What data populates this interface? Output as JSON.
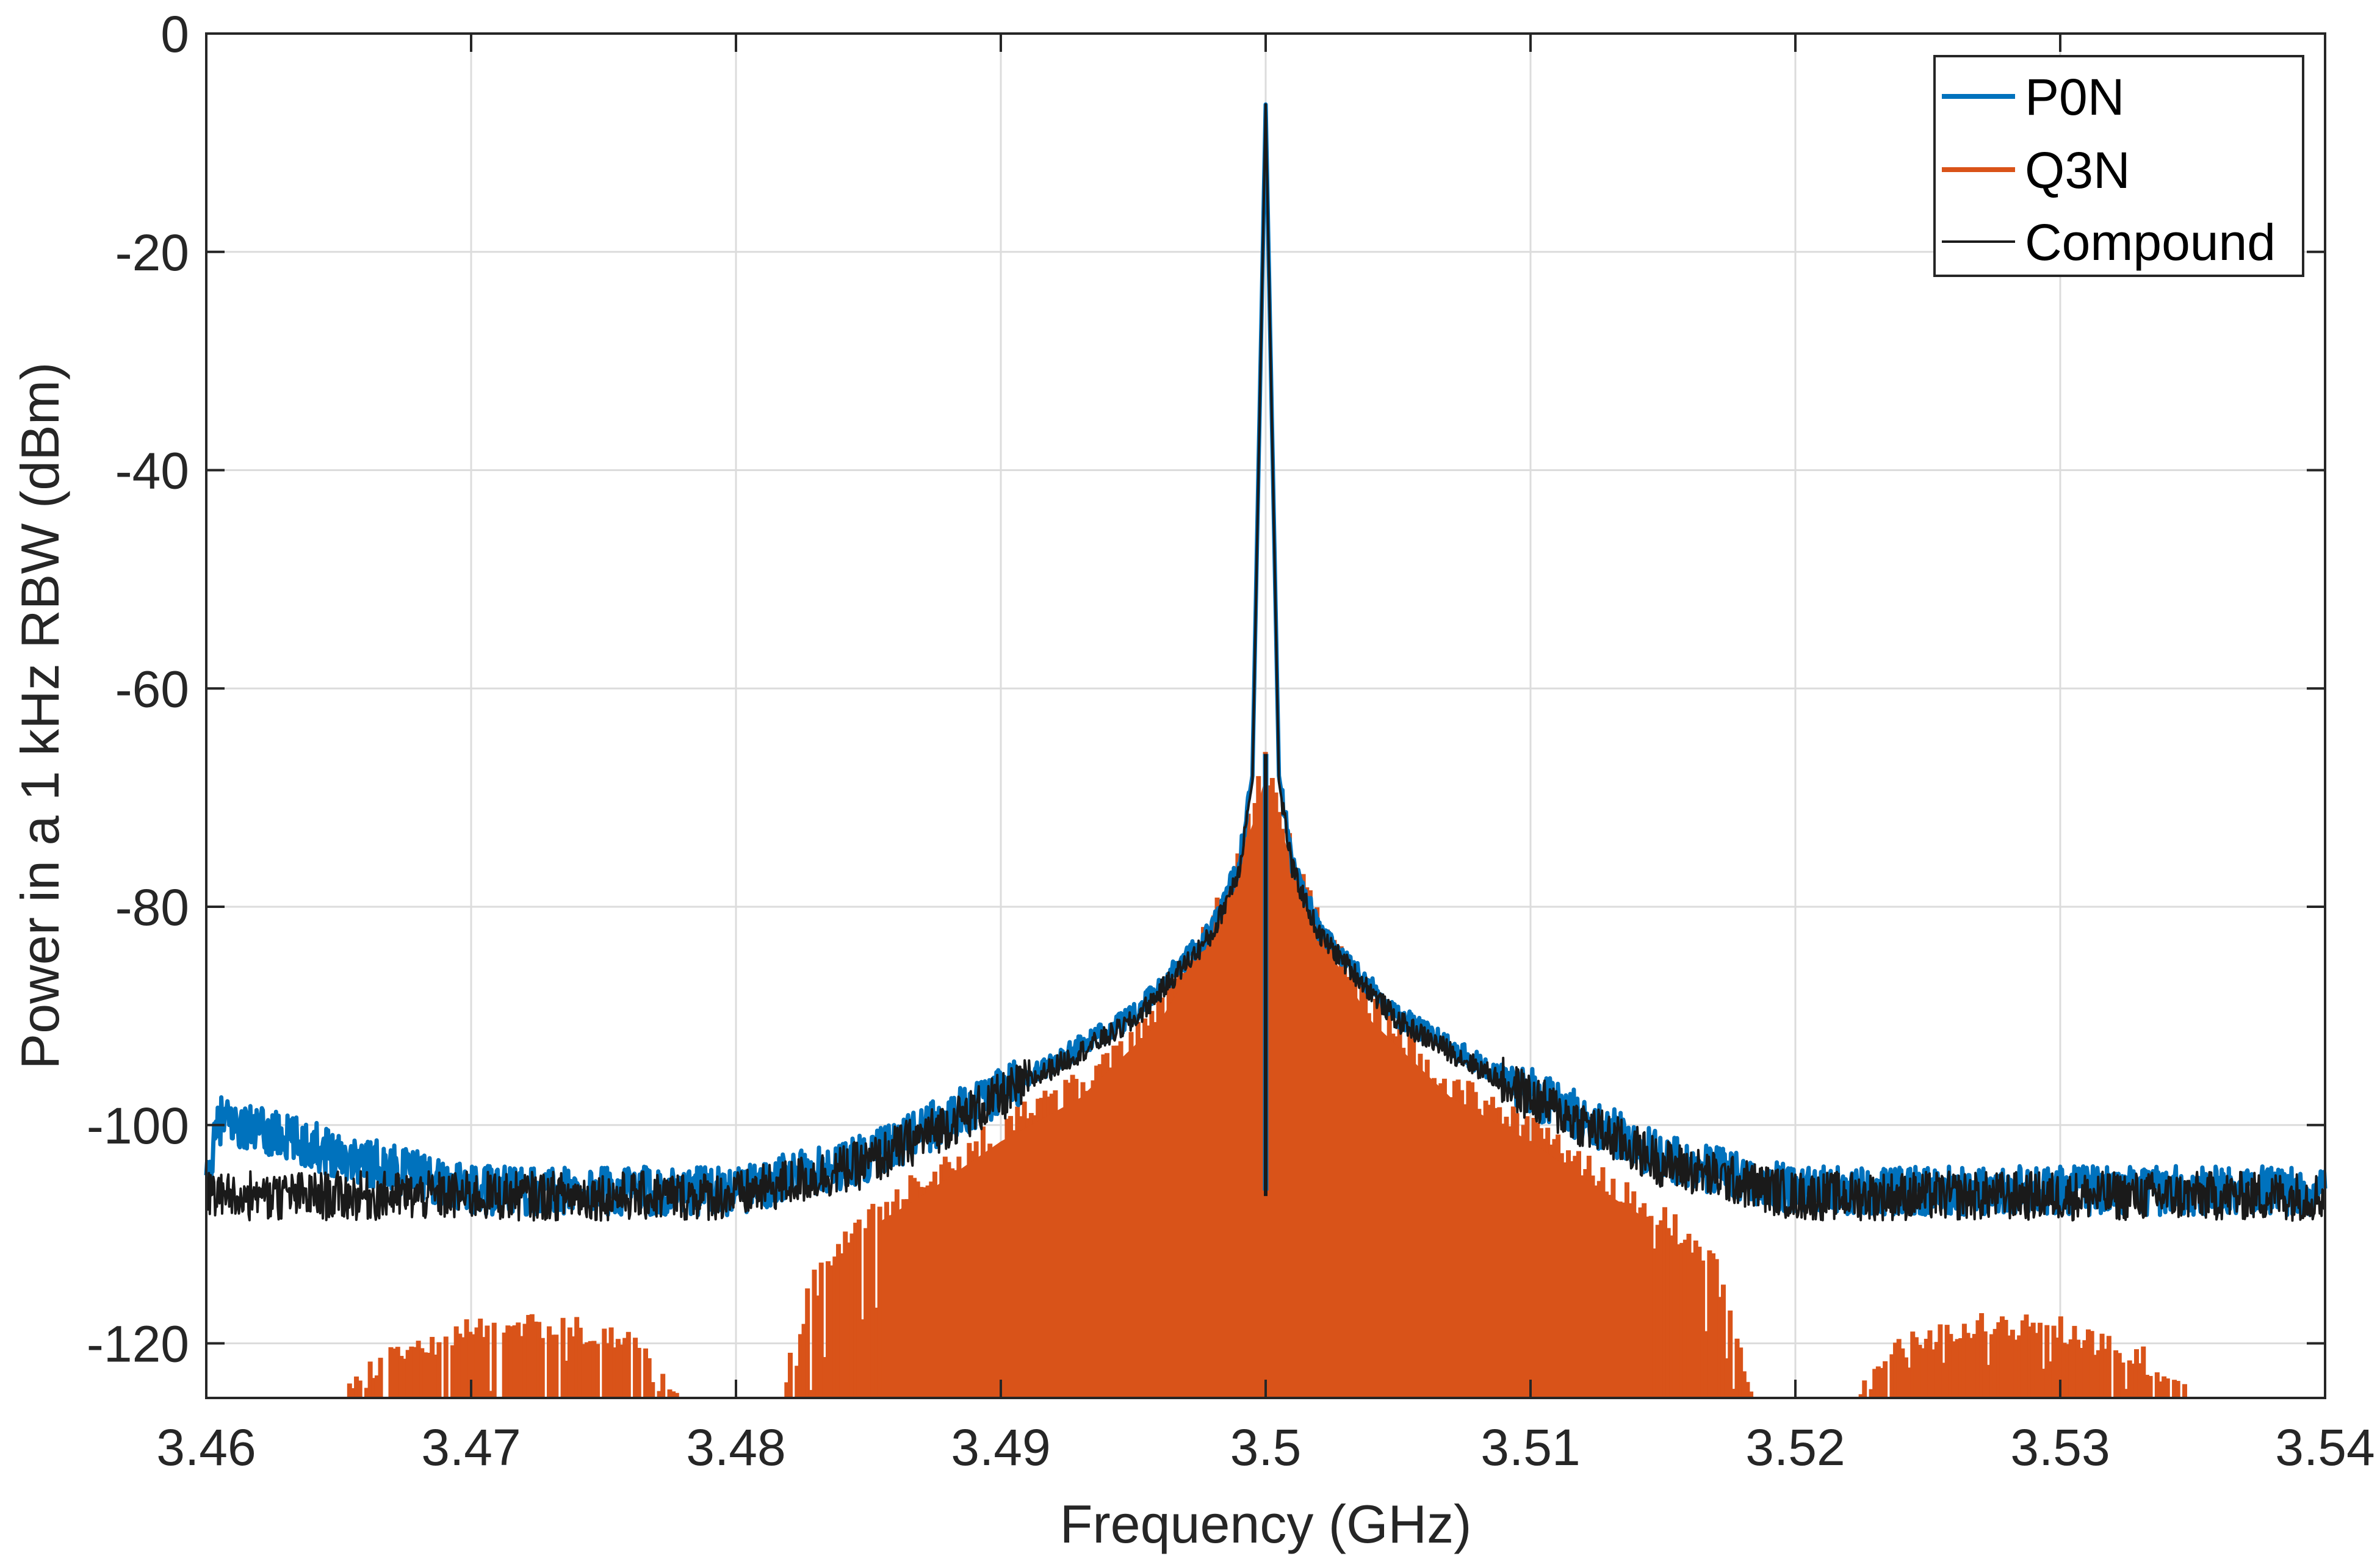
{
  "colors": {
    "p0n": "#0072BD",
    "q3n": "#D95319",
    "compound": "#1a1a1a",
    "grid": "#dcdcdc",
    "axis": "#262626",
    "background": "#ffffff"
  },
  "chart_data": {
    "type": "line",
    "title": "",
    "xlabel": "Frequency (GHz)",
    "ylabel": "Power in a 1 kHz RBW (dBm)",
    "xlim": [
      3.46,
      3.54
    ],
    "ylim": [
      -125,
      0
    ],
    "x_ticks": [
      3.46,
      3.47,
      3.48,
      3.49,
      3.5,
      3.51,
      3.52,
      3.53,
      3.54
    ],
    "x_tick_labels": [
      "3.46",
      "3.47",
      "3.48",
      "3.49",
      "3.5",
      "3.51",
      "3.52",
      "3.53",
      "3.54"
    ],
    "y_ticks": [
      0,
      -20,
      -40,
      -60,
      -80,
      -100,
      -120
    ],
    "y_tick_labels": [
      "0",
      "-20",
      "-40",
      "-60",
      "-80",
      "-100",
      "-120"
    ],
    "grid": true,
    "legend_position": "top-right",
    "series": [
      {
        "name": "P0N",
        "style": "line",
        "color_key": "p0n",
        "description_points": {
          "x": [
            3.46,
            3.46,
            3.4605,
            3.47,
            3.48,
            3.485,
            3.49,
            3.495,
            3.498,
            3.499,
            3.4995,
            3.5,
            3.5005,
            3.501,
            3.502,
            3.505,
            3.51,
            3.515,
            3.52,
            3.53,
            3.54
          ],
          "y": [
            -106,
            -106,
            -99.5,
            -106,
            -106,
            -103,
            -97,
            -90,
            -82,
            -76,
            -68,
            -6.5,
            -68,
            -76,
            -82,
            -90,
            -97,
            -103,
            -106,
            -106,
            -106
          ]
        },
        "noise_floor_dBm": -106
      },
      {
        "name": "Q3N",
        "style": "bars",
        "color_key": "q3n",
        "envelope": {
          "x": [
            3.4645,
            3.467,
            3.47,
            3.473,
            3.476,
            3.478,
            3.4815,
            3.483,
            3.485,
            3.487,
            3.49,
            3.493,
            3.496,
            3.498,
            3.4995,
            3.5,
            3.5005,
            3.502,
            3.504,
            3.507,
            3.51,
            3.513,
            3.515,
            3.517,
            3.5185,
            3.522,
            3.524,
            3.527,
            3.53,
            3.533,
            3.5355
          ],
          "y": [
            -125,
            -120,
            -117.5,
            -117,
            -118.5,
            -125,
            -125,
            -112,
            -107,
            -104,
            -99,
            -95,
            -88,
            -80,
            -70,
            -65.5,
            -70,
            -80,
            -88,
            -95,
            -99,
            -104,
            -107,
            -112,
            -125,
            -125,
            -119,
            -117,
            -117.5,
            -120,
            -125
          ]
        }
      },
      {
        "name": "Compound",
        "style": "line",
        "color_key": "compound",
        "description_points": {
          "x": [
            3.46,
            3.47,
            3.48,
            3.485,
            3.49,
            3.495,
            3.498,
            3.499,
            3.4995,
            3.5,
            3.5005,
            3.501,
            3.502,
            3.505,
            3.51,
            3.515,
            3.52,
            3.53,
            3.54
          ],
          "y": [
            -106.5,
            -106.5,
            -106.5,
            -103.5,
            -97.5,
            -90.5,
            -82.5,
            -76.5,
            -68.5,
            -6.5,
            -68.5,
            -76.5,
            -82.5,
            -90.5,
            -97.5,
            -103.5,
            -106.5,
            -106.5,
            -106.5
          ]
        },
        "noise_floor_dBm": -106.5
      }
    ]
  }
}
